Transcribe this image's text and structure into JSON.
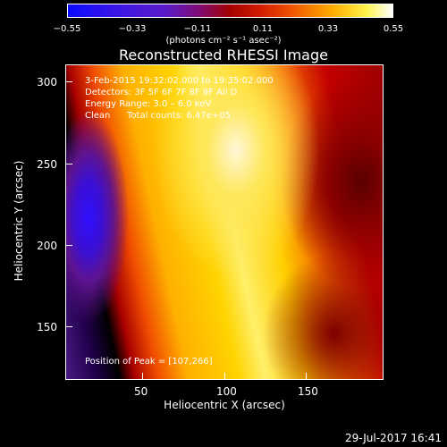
{
  "colorbar": {
    "ticks": [
      "−0.55",
      "−0.33",
      "−0.11",
      "0.11",
      "0.33",
      "0.55"
    ],
    "units": "(photons cm⁻² s⁻¹ asec⁻²)"
  },
  "title": "Reconstructed RHESSI Image",
  "overlay": {
    "line1": "3-Feb-2015 19:32:02.000 to 19:35:02.000",
    "line2": "Detectors: 3F 5F 6F 7F 8F 9F  All D",
    "line3": "Energy Range: 3.0 – 6.0 keV",
    "line4_left": "Clean",
    "line4_right": "Total counts: 6.47e+05",
    "peak": "Position of Peak = [107,266]"
  },
  "axes": {
    "xlabel": "Heliocentric X (arcsec)",
    "ylabel": "Heliocentric Y (arcsec)",
    "xticks": [
      "50",
      "100",
      "150"
    ],
    "yticks": [
      "300",
      "250",
      "200",
      "150"
    ]
  },
  "footer": {
    "date": "29-Jul-2017 16:41"
  }
}
